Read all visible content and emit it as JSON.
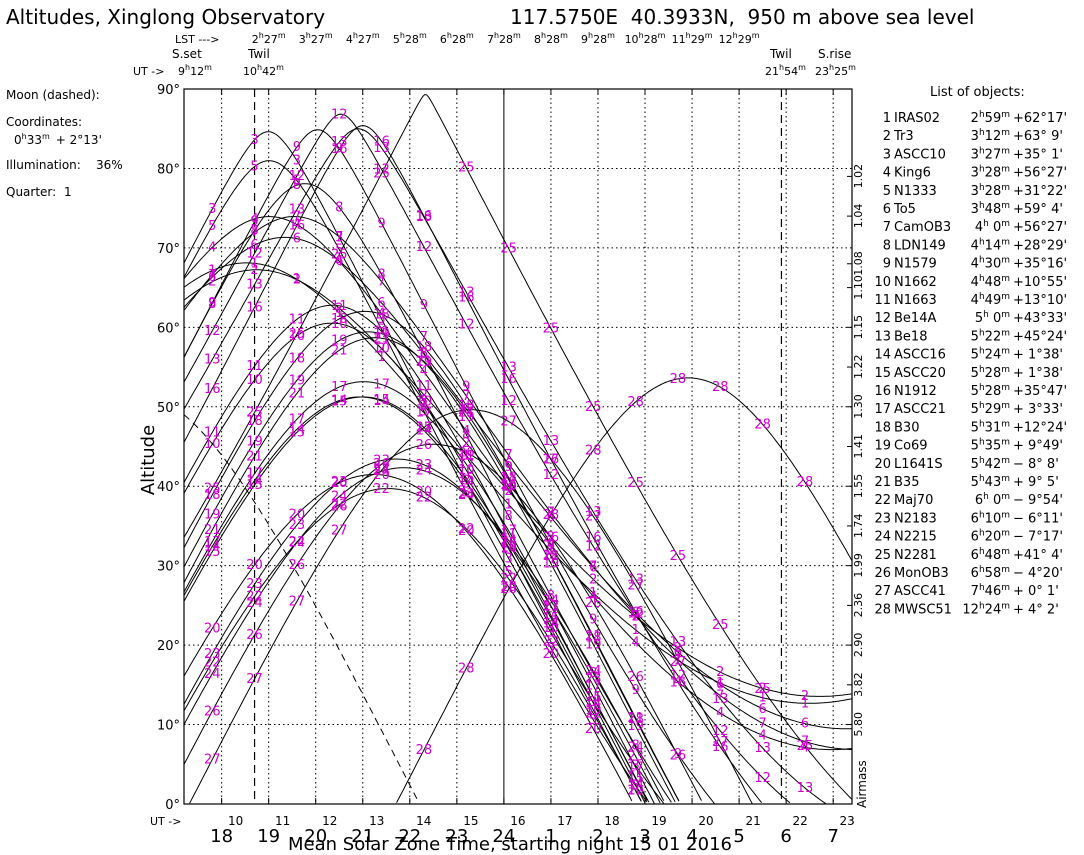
{
  "header": {
    "title": "Altitudes, Xinglong Observatory",
    "coords": "117.5750E  40.3933N,  950 m above sea level"
  },
  "moon": {
    "label": "Moon (dashed):",
    "coords_label": "Coordinates:",
    "coords_ra_h": "0",
    "coords_ra_m": "33",
    "coords_dec": "+ 2°13'",
    "illumination_label": "Illumination:",
    "illumination": "36%",
    "quarter_label": "Quarter:",
    "quarter": "1"
  },
  "top_axis": {
    "lst_label": "LST --->",
    "ut_label": "UT ->",
    "sset_label": "S.set",
    "sset_time_h": "9",
    "sset_time_m": "12",
    "twil_left_label": "Twil",
    "twil_left_time_h": "10",
    "twil_left_time_m": "42",
    "twil_right_label": "Twil",
    "twil_right_time_h": "21",
    "twil_right_time_m": "54",
    "srise_label": "S.rise",
    "srise_time_h": "23",
    "srise_time_m": "25",
    "lst_ticks": [
      {
        "h": "2",
        "m": "27"
      },
      {
        "h": "3",
        "m": "27"
      },
      {
        "h": "4",
        "m": "27"
      },
      {
        "h": "5",
        "m": "28"
      },
      {
        "h": "6",
        "m": "28"
      },
      {
        "h": "7",
        "m": "28"
      },
      {
        "h": "8",
        "m": "28"
      },
      {
        "h": "9",
        "m": "28"
      },
      {
        "h": "10",
        "m": "28"
      },
      {
        "h": "11",
        "m": "29"
      },
      {
        "h": "12",
        "m": "29"
      }
    ]
  },
  "bottom_axis": {
    "ut_label": "UT ->",
    "ut_ticks": [
      "10",
      "11",
      "12",
      "13",
      "14",
      "15",
      "16",
      "17",
      "18",
      "19",
      "20",
      "21",
      "22",
      "23"
    ],
    "local_ticks": [
      "18",
      "19",
      "20",
      "21",
      "22",
      "23",
      "24",
      "1",
      "2",
      "3",
      "4",
      "5",
      "6",
      "7"
    ],
    "xlabel": "Mean Solar Zone Time, starting night 15 01 2016"
  },
  "airmass_label": "Airmass",
  "objects_title": "List of objects:",
  "chart_data": {
    "type": "line",
    "ylabel": "Altitude",
    "ylim": [
      0,
      90
    ],
    "xlim_ut": [
      9.2,
      23.4
    ],
    "y_ticks": [
      "0°",
      "10°",
      "20°",
      "30°",
      "40°",
      "50°",
      "60°",
      "70°",
      "80°",
      "90°"
    ],
    "airmass_ticks": [
      "1.02",
      "1.04",
      "1.08",
      "1.10",
      "1.15",
      "1.22",
      "1.30",
      "1.41",
      "1.55",
      "1.74",
      "1.99",
      "2.36",
      "2.90",
      "3.82",
      "5.80"
    ],
    "site_latitude": 40.3933,
    "lst_at_ut10": 2.4555,
    "objects": [
      {
        "n": "1",
        "name": "IRAS02",
        "ra_h": "2",
        "ra_m": "59",
        "dec": "+62°17'",
        "ra": 2.983,
        "decd": 62.28
      },
      {
        "n": "2",
        "name": "Tr3",
        "ra_h": "3",
        "ra_m": "12",
        "dec": "+63° 9'",
        "ra": 3.2,
        "decd": 63.15
      },
      {
        "n": "3",
        "name": "ASCC10",
        "ra_h": "3",
        "ra_m": "27",
        "dec": "+35° 1'",
        "ra": 3.45,
        "decd": 35.02
      },
      {
        "n": "4",
        "name": "King6",
        "ra_h": "3",
        "ra_m": "28",
        "dec": "+56°27'",
        "ra": 3.467,
        "decd": 56.45
      },
      {
        "n": "5",
        "name": "N1333",
        "ra_h": "3",
        "ra_m": "28",
        "dec": "+31°22'",
        "ra": 3.467,
        "decd": 31.37
      },
      {
        "n": "6",
        "name": "To5",
        "ra_h": "3",
        "ra_m": "48",
        "dec": "+59° 4'",
        "ra": 3.8,
        "decd": 59.07
      },
      {
        "n": "7",
        "name": "CamOB3",
        "ra_h": "4",
        "ra_m": " 0",
        "dec": "+56°27'",
        "ra": 4.0,
        "decd": 56.45
      },
      {
        "n": "8",
        "name": "LDN149",
        "ra_h": "4",
        "ra_m": "14",
        "dec": "+28°29'",
        "ra": 4.233,
        "decd": 28.48
      },
      {
        "n": "9",
        "name": "N1579",
        "ra_h": "4",
        "ra_m": "30",
        "dec": "+35°16'",
        "ra": 4.5,
        "decd": 35.27
      },
      {
        "n": "10",
        "name": "N1662",
        "ra_h": "4",
        "ra_m": "48",
        "dec": "+10°55'",
        "ra": 4.8,
        "decd": 10.92
      },
      {
        "n": "11",
        "name": "N1663",
        "ra_h": "4",
        "ra_m": "49",
        "dec": "+13°10'",
        "ra": 4.817,
        "decd": 13.17
      },
      {
        "n": "12",
        "name": "Be14A",
        "ra_h": "5",
        "ra_m": " 0",
        "dec": "+43°33'",
        "ra": 5.0,
        "decd": 43.55
      },
      {
        "n": "13",
        "name": "Be18",
        "ra_h": "5",
        "ra_m": "22",
        "dec": "+45°24'",
        "ra": 5.367,
        "decd": 45.4
      },
      {
        "n": "14",
        "name": "ASCC16",
        "ra_h": "5",
        "ra_m": "24",
        "dec": "+ 1°38'",
        "ra": 5.4,
        "decd": 1.63
      },
      {
        "n": "15",
        "name": "ASCC20",
        "ra_h": "5",
        "ra_m": "28",
        "dec": "+ 1°38'",
        "ra": 5.467,
        "decd": 1.63
      },
      {
        "n": "16",
        "name": "N1912",
        "ra_h": "5",
        "ra_m": "28",
        "dec": "+35°47'",
        "ra": 5.467,
        "decd": 35.78
      },
      {
        "n": "17",
        "name": "ASCC21",
        "ra_h": "5",
        "ra_m": "29",
        "dec": "+ 3°33'",
        "ra": 5.483,
        "decd": 3.55
      },
      {
        "n": "18",
        "name": "B30",
        "ra_h": "5",
        "ra_m": "31",
        "dec": "+12°24'",
        "ra": 5.517,
        "decd": 12.4
      },
      {
        "n": "19",
        "name": "Co69",
        "ra_h": "5",
        "ra_m": "35",
        "dec": "+ 9°49'",
        "ra": 5.583,
        "decd": 9.82
      },
      {
        "n": "20",
        "name": "L1641S",
        "ra_h": "5",
        "ra_m": "42",
        "dec": "− 8° 8'",
        "ra": 5.7,
        "decd": -8.13
      },
      {
        "n": "21",
        "name": "B35",
        "ra_h": "5",
        "ra_m": "43",
        "dec": "+ 9° 5'",
        "ra": 5.717,
        "decd": 9.08
      },
      {
        "n": "22",
        "name": "Maj70",
        "ra_h": "6",
        "ra_m": " 0",
        "dec": "− 9°54'",
        "ra": 6.0,
        "decd": -9.9
      },
      {
        "n": "23",
        "name": "N2183",
        "ra_h": "6",
        "ra_m": "10",
        "dec": "− 6°11'",
        "ra": 6.167,
        "decd": -6.18
      },
      {
        "n": "24",
        "name": "N2215",
        "ra_h": "6",
        "ra_m": "20",
        "dec": "− 7°17'",
        "ra": 6.333,
        "decd": -7.28
      },
      {
        "n": "25",
        "name": "N2281",
        "ra_h": "6",
        "ra_m": "48",
        "dec": "+41° 4'",
        "ra": 6.8,
        "decd": 41.07
      },
      {
        "n": "26",
        "name": "MonOB3",
        "ra_h": "6",
        "ra_m": "58",
        "dec": "− 4°20'",
        "ra": 6.967,
        "decd": -4.33
      },
      {
        "n": "27",
        "name": "ASCC41",
        "ra_h": "7",
        "ra_m": "46",
        "dec": "+ 0° 1'",
        "ra": 7.767,
        "decd": 0.02
      },
      {
        "n": "28",
        "name": "MWSC51",
        "ra_h": "12",
        "ra_m": "24",
        "dec": "+ 4° 2'",
        "ra": 12.4,
        "decd": 4.03
      }
    ],
    "moon_ra": 0.55,
    "moon_dec": 2.22
  }
}
